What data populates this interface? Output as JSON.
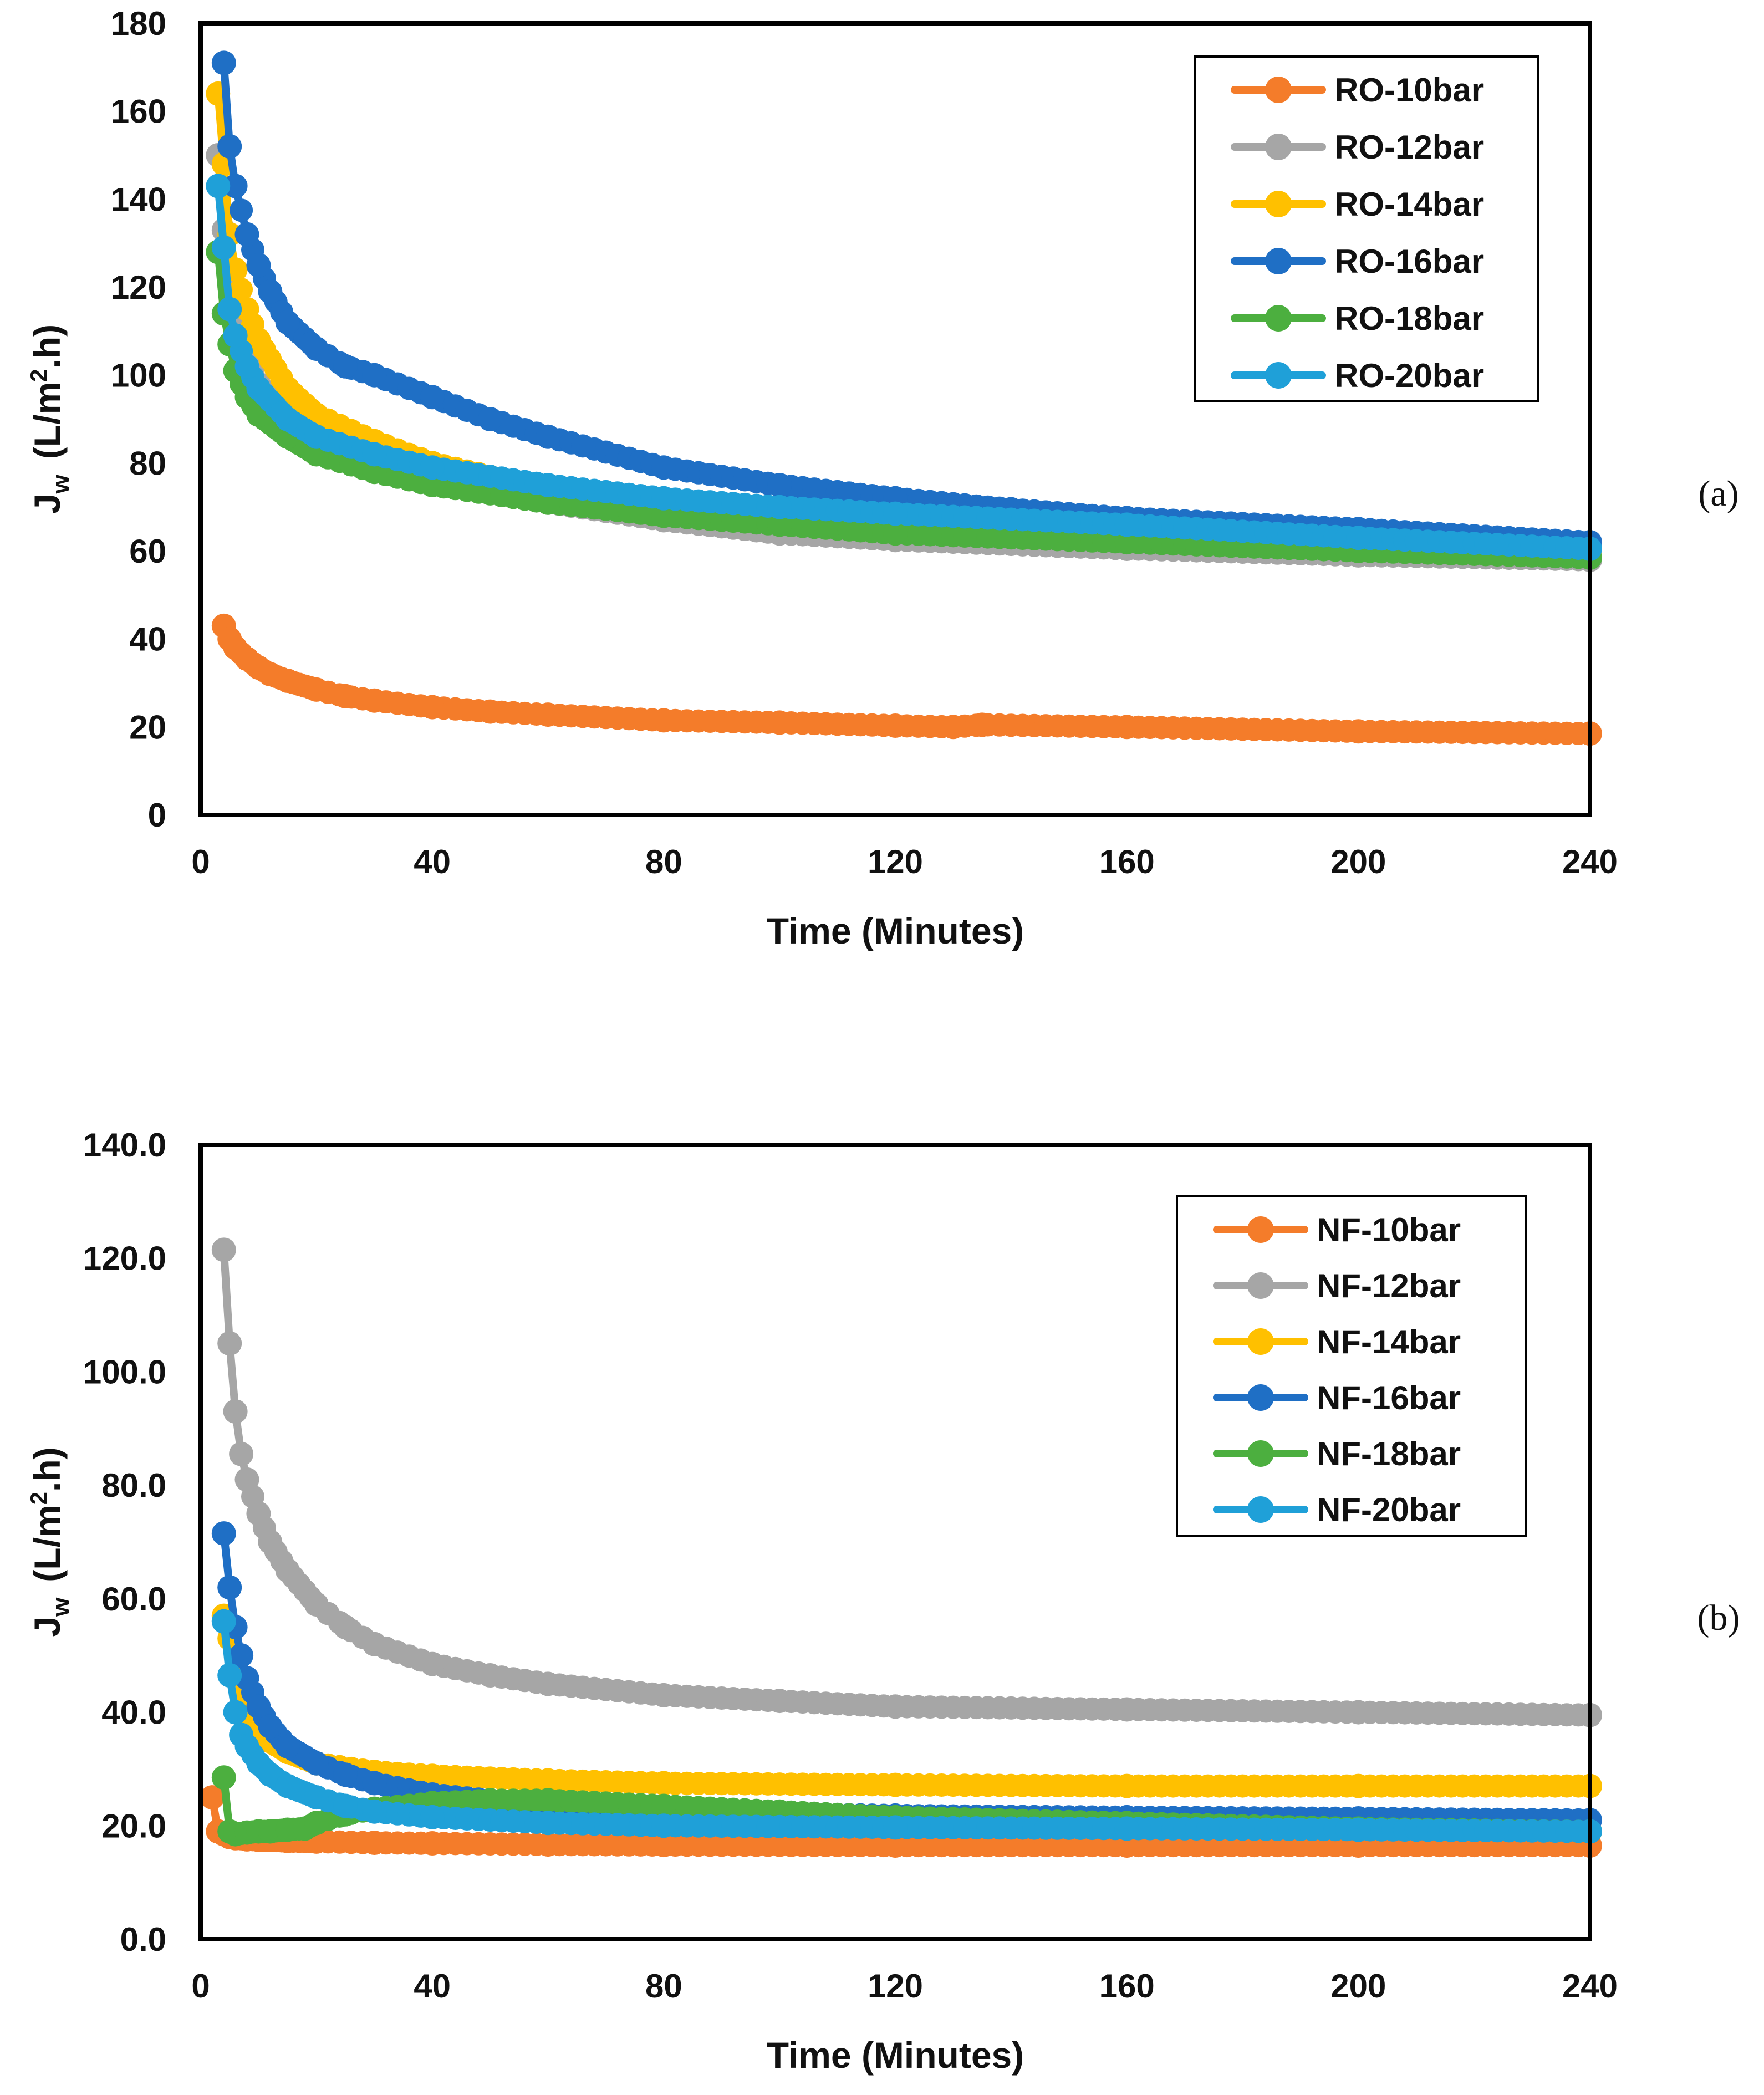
{
  "chart_data": [
    {
      "id": "a",
      "type": "line",
      "panel_label": "(a)",
      "xlabel": "Time (Minutes)",
      "ylabel_main": "J",
      "ylabel_sub": "w",
      "ylabel_unit_pre": "(L/m",
      "ylabel_unit_sup": "2",
      "ylabel_unit_post": ".h)",
      "xlim": [
        0,
        240
      ],
      "ylim": [
        0,
        180
      ],
      "xticks": [
        "0",
        "40",
        "80",
        "120",
        "160",
        "200",
        "240"
      ],
      "yticks": [
        "0",
        "20",
        "40",
        "60",
        "80",
        "100",
        "120",
        "140",
        "160",
        "180"
      ],
      "legend_position": "top-right",
      "series": [
        {
          "name": "RO-10bar",
          "color": "#F47C2A",
          "x": [
            4,
            5,
            6,
            8,
            10,
            12,
            15,
            20,
            25,
            30,
            40,
            50,
            60,
            80,
            100,
            120,
            130,
            135,
            160,
            200,
            240
          ],
          "y": [
            43,
            40,
            38,
            35.5,
            33.5,
            32,
            30.5,
            28.5,
            27,
            26,
            24.5,
            23.5,
            22.8,
            21.5,
            21,
            20.3,
            20,
            20.5,
            20,
            19,
            18.5
          ]
        },
        {
          "name": "RO-12bar",
          "color": "#A6A6A6",
          "x": [
            3,
            4,
            5,
            6,
            8,
            10,
            15,
            20,
            30,
            40,
            60,
            80,
            100,
            120,
            160,
            200,
            240
          ],
          "y": [
            150,
            133,
            120,
            112,
            104,
            98,
            90,
            85,
            80,
            76,
            71,
            67,
            64,
            62.5,
            60.5,
            59,
            58
          ]
        },
        {
          "name": "RO-14bar",
          "color": "#FFC000",
          "x": [
            3,
            4,
            5,
            6,
            8,
            10,
            15,
            20,
            30,
            40,
            60,
            80,
            100,
            120,
            160,
            200,
            240
          ],
          "y": [
            164,
            148,
            132,
            124,
            115,
            108,
            97,
            91,
            85,
            80,
            74,
            70,
            67,
            65,
            62.5,
            60.5,
            59.5
          ]
        },
        {
          "name": "RO-16bar",
          "color": "#1F6FC5",
          "x": [
            4,
            5,
            6,
            8,
            10,
            12,
            15,
            20,
            25,
            30,
            40,
            50,
            60,
            80,
            100,
            120,
            140,
            160,
            200,
            240
          ],
          "y": [
            171,
            152,
            143,
            132,
            125,
            119,
            112,
            106,
            102,
            100,
            95,
            90,
            86,
            79,
            75,
            72,
            69.5,
            67.5,
            65,
            62
          ]
        },
        {
          "name": "RO-18bar",
          "color": "#4CAF3F",
          "x": [
            3,
            4,
            5,
            6,
            8,
            10,
            15,
            20,
            30,
            40,
            60,
            80,
            100,
            120,
            160,
            200,
            240
          ],
          "y": [
            128,
            114,
            107,
            101,
            95,
            91,
            86,
            82,
            78,
            75,
            71,
            68,
            66,
            64,
            62,
            60,
            58.5
          ]
        },
        {
          "name": "RO-20bar",
          "color": "#1FA0D8",
          "x": [
            3,
            4,
            5,
            6,
            8,
            10,
            15,
            20,
            30,
            40,
            60,
            80,
            100,
            120,
            160,
            200,
            240
          ],
          "y": [
            143,
            129,
            115,
            109,
            102,
            97,
            90,
            86,
            82,
            79,
            75,
            72,
            70,
            68.5,
            66,
            63,
            60.5
          ]
        }
      ]
    },
    {
      "id": "b",
      "type": "line",
      "panel_label": "(b)",
      "xlabel": "Time (Minutes)",
      "ylabel_main": "J",
      "ylabel_sub": "w",
      "ylabel_unit_pre": "(L/m",
      "ylabel_unit_sup": "2",
      "ylabel_unit_post": ".h)",
      "xlim": [
        0,
        240
      ],
      "ylim": [
        0,
        140
      ],
      "xticks": [
        "0",
        "40",
        "80",
        "120",
        "160",
        "200",
        "240"
      ],
      "yticks": [
        "0.0",
        "20.0",
        "40.0",
        "60.0",
        "80.0",
        "100.0",
        "120.0",
        "140.0"
      ],
      "legend_position": "top-right",
      "series": [
        {
          "name": "NF-10bar",
          "color": "#F47C2A",
          "x": [
            2,
            3,
            4,
            5,
            6,
            8,
            10,
            15,
            20,
            30,
            40,
            60,
            80,
            120,
            160,
            200,
            240
          ],
          "y": [
            25,
            19,
            18.5,
            18,
            17.8,
            17.6,
            17.5,
            17.3,
            17.2,
            17,
            16.9,
            16.7,
            16.6,
            16.5,
            16.5,
            16.5,
            16.5
          ]
        },
        {
          "name": "NF-12bar",
          "color": "#A6A6A6",
          "x": [
            4,
            5,
            6,
            7,
            8,
            10,
            12,
            15,
            20,
            25,
            30,
            40,
            50,
            60,
            80,
            100,
            120,
            160,
            200,
            240
          ],
          "y": [
            121.5,
            105,
            93,
            85.5,
            81,
            75,
            70,
            65,
            59,
            55,
            52,
            48.5,
            46.5,
            45,
            43,
            42,
            41,
            40.5,
            40,
            39.5
          ]
        },
        {
          "name": "NF-14bar",
          "color": "#FFC000",
          "x": [
            4,
            5,
            6,
            8,
            10,
            15,
            20,
            30,
            40,
            60,
            80,
            120,
            160,
            200,
            240
          ],
          "y": [
            57,
            53,
            47,
            40,
            36,
            33,
            31,
            29.5,
            28.8,
            28,
            27.5,
            27.2,
            27,
            27,
            27
          ]
        },
        {
          "name": "NF-16bar",
          "color": "#1F6FC5",
          "x": [
            4,
            5,
            6,
            7,
            8,
            10,
            12,
            15,
            20,
            25,
            30,
            40,
            60,
            80,
            120,
            160,
            200,
            240
          ],
          "y": [
            71.5,
            62,
            55,
            50,
            46,
            41,
            37.5,
            34,
            31,
            29,
            27.5,
            25.5,
            23.5,
            22.5,
            21.8,
            21.5,
            21.3,
            21
          ]
        },
        {
          "name": "NF-18bar",
          "color": "#4CAF3F",
          "x": [
            4,
            5,
            6,
            8,
            10,
            12,
            15,
            18,
            20,
            25,
            30,
            40,
            50,
            60,
            80,
            100,
            120,
            160,
            200,
            240
          ],
          "y": [
            28.5,
            19,
            18.5,
            18.8,
            19,
            19,
            19.3,
            19.5,
            20.5,
            22,
            23,
            24,
            24.5,
            24.5,
            23.5,
            22.5,
            21.5,
            20.5,
            19.5,
            19
          ]
        },
        {
          "name": "NF-20bar",
          "color": "#1FA0D8",
          "x": [
            4,
            5,
            6,
            7,
            8,
            10,
            12,
            15,
            20,
            25,
            30,
            40,
            60,
            80,
            120,
            160,
            200,
            240
          ],
          "y": [
            56,
            46.5,
            40,
            36,
            34,
            31,
            29,
            27,
            25,
            23.5,
            22.5,
            21.5,
            20.5,
            20,
            19.7,
            19.5,
            19.3,
            19
          ]
        }
      ]
    }
  ]
}
